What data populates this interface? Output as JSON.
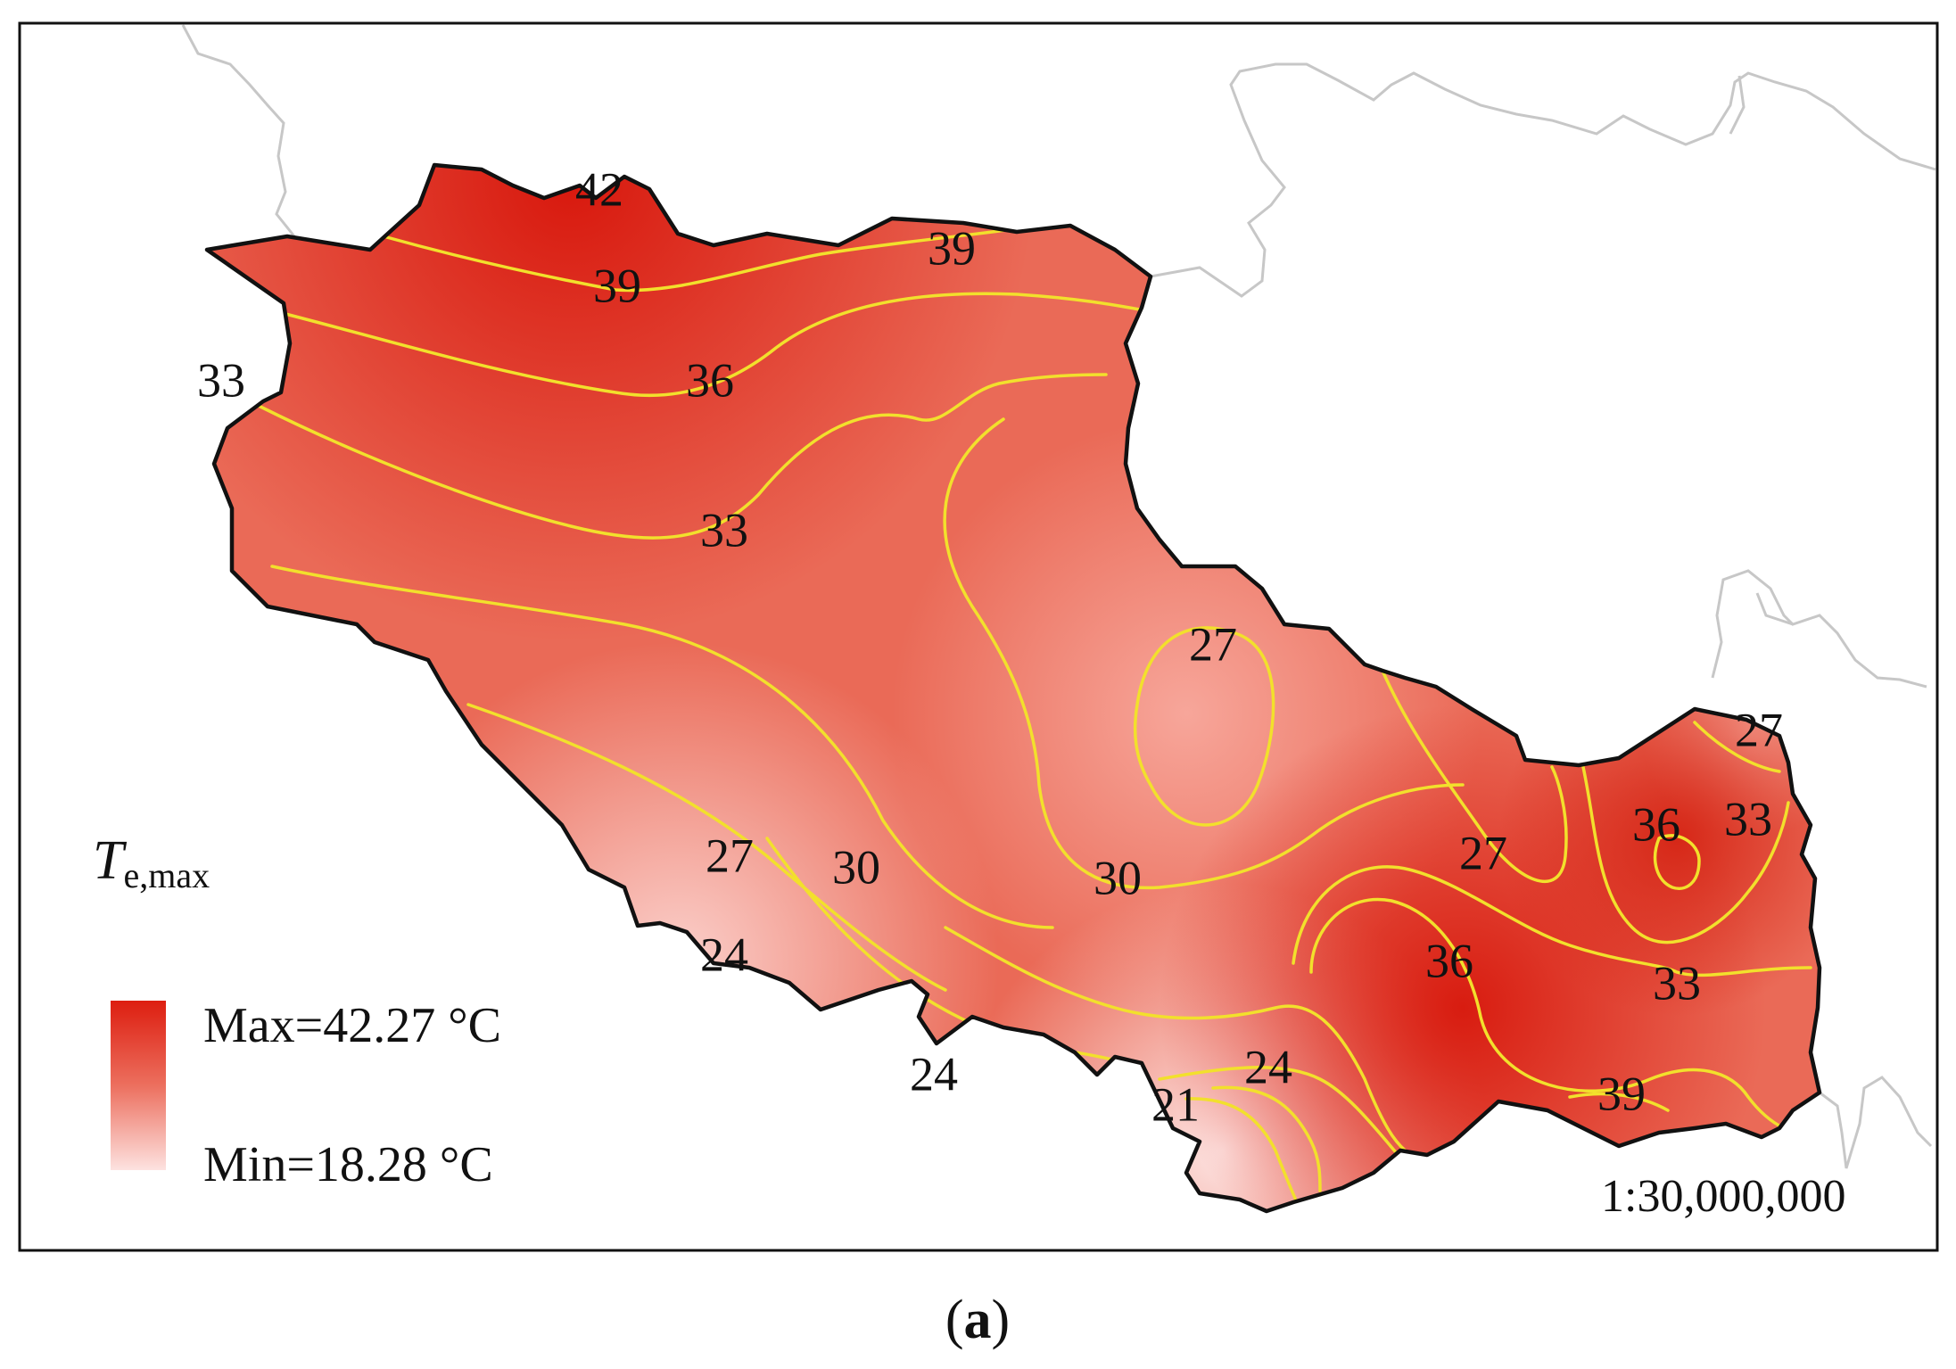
{
  "map": {
    "variable_symbol": "T",
    "variable_subscript": "e,max",
    "legend": {
      "max_label": "Max=42.27 °C",
      "min_label": "Min=18.28 °C",
      "max_color": "#dd1e10",
      "min_color": "#fde2e0"
    },
    "scale_label": "1:30,000,000",
    "contour_color": "#f2e02c",
    "boundary_color": "#111111",
    "neighbor_border_color": "#c7c7c7",
    "contour_labels": [
      {
        "id": "c42-north",
        "text": "42"
      },
      {
        "id": "c39-north-west",
        "text": "39"
      },
      {
        "id": "c39-north-east",
        "text": "39"
      },
      {
        "id": "c33-west-edge",
        "text": "33"
      },
      {
        "id": "c36-north",
        "text": "36"
      },
      {
        "id": "c33-center-west",
        "text": "33"
      },
      {
        "id": "c27-center",
        "text": "27"
      },
      {
        "id": "c27-southwest",
        "text": "27"
      },
      {
        "id": "c30-southwest",
        "text": "30"
      },
      {
        "id": "c24-southwest",
        "text": "24"
      },
      {
        "id": "c24-south-edge",
        "text": "24"
      },
      {
        "id": "c30-center-south",
        "text": "30"
      },
      {
        "id": "c27-east",
        "text": "27"
      },
      {
        "id": "c36-southeast",
        "text": "36"
      },
      {
        "id": "c36-east-high",
        "text": "36"
      },
      {
        "id": "c33-east",
        "text": "33"
      },
      {
        "id": "c33-southeast",
        "text": "33"
      },
      {
        "id": "c27-far-east",
        "text": "27"
      },
      {
        "id": "c24-south",
        "text": "24"
      },
      {
        "id": "c21-south",
        "text": "21"
      },
      {
        "id": "c39-south",
        "text": "39"
      }
    ]
  },
  "caption": {
    "open": "(",
    "letter": "a",
    "close": ")"
  }
}
